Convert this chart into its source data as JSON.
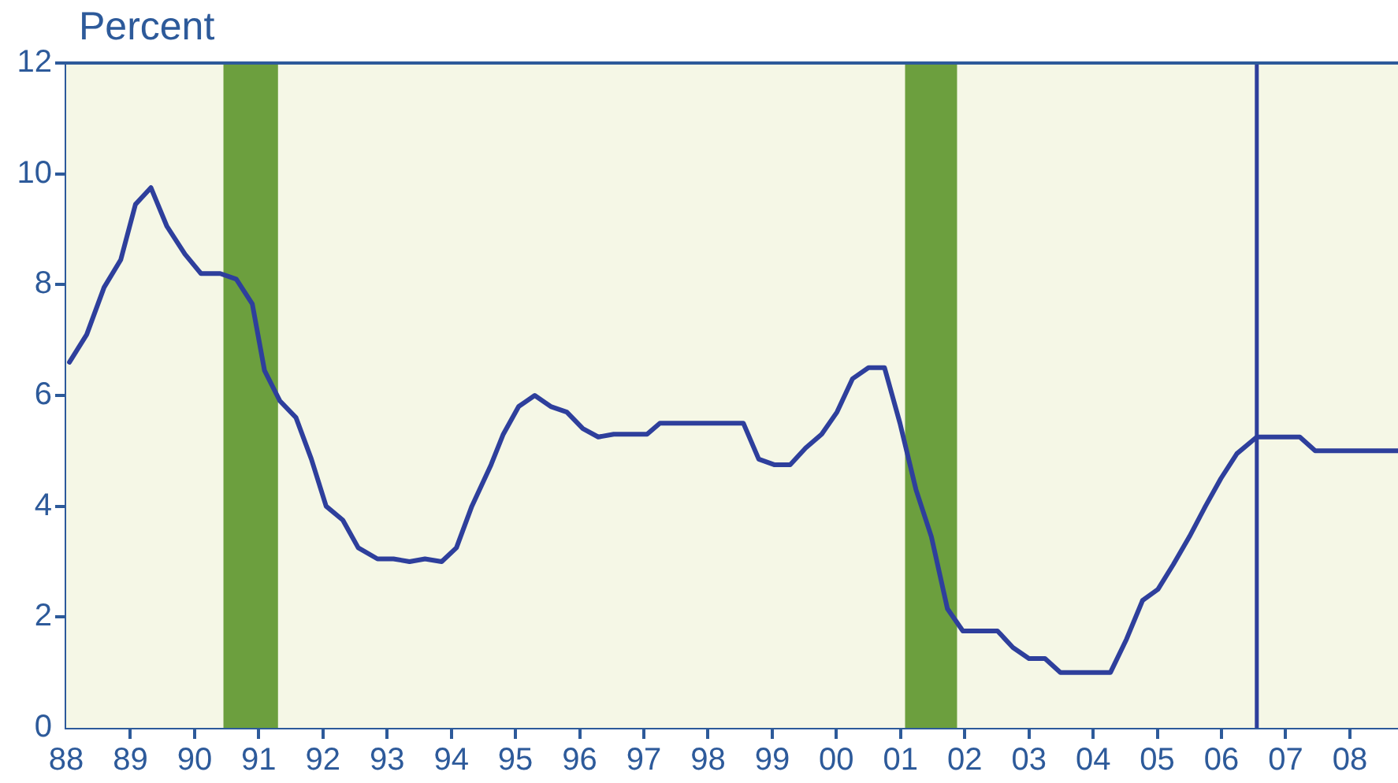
{
  "chart_data": {
    "type": "line",
    "ylabel": "Percent",
    "series": [
      {
        "color": "#2e3f9c",
        "x": [
          1988.05,
          1988.32,
          1988.59,
          1988.85,
          1989.08,
          1989.32,
          1989.57,
          1989.85,
          1990.1,
          1990.4,
          1990.65,
          1990.9,
          1991.09,
          1991.33,
          1991.58,
          1991.82,
          1992.05,
          1992.31,
          1992.55,
          1992.85,
          1993.1,
          1993.35,
          1993.59,
          1993.85,
          1994.08,
          1994.32,
          1994.62,
          1994.81,
          1995.05,
          1995.3,
          1995.55,
          1995.8,
          1996.05,
          1996.29,
          1996.53,
          1996.78,
          1997.05,
          1997.25,
          1997.55,
          1997.8,
          1998.05,
          1998.3,
          1998.55,
          1998.79,
          1999.03,
          1999.28,
          1999.52,
          1999.77,
          2000.01,
          2000.25,
          2000.5,
          2000.75,
          2000.99,
          2001.24,
          2001.48,
          2001.73,
          2001.97,
          2002.22,
          2002.51,
          2002.75,
          2003.0,
          2003.25,
          2003.49,
          2003.75,
          2003.98,
          2004.27,
          2004.52,
          2004.77,
          2005.01,
          2005.25,
          2005.5,
          2005.75,
          2005.99,
          2006.24,
          2006.55,
          2006.75,
          2007.0,
          2007.22,
          2007.46,
          2008.75
        ],
        "values": [
          6.6,
          7.1,
          7.95,
          8.45,
          9.45,
          9.75,
          9.05,
          8.55,
          8.2,
          8.2,
          8.1,
          7.65,
          6.45,
          5.9,
          5.6,
          4.85,
          4.0,
          3.75,
          3.25,
          3.05,
          3.05,
          3.0,
          3.05,
          3.0,
          3.25,
          4.0,
          4.75,
          5.3,
          5.8,
          6.0,
          5.8,
          5.7,
          5.4,
          5.25,
          5.3,
          5.3,
          5.3,
          5.5,
          5.5,
          5.5,
          5.5,
          5.5,
          5.5,
          4.85,
          4.75,
          4.75,
          5.05,
          5.3,
          5.7,
          6.3,
          6.5,
          6.5,
          5.5,
          4.3,
          3.45,
          2.15,
          1.75,
          1.75,
          1.75,
          1.45,
          1.25,
          1.25,
          1.0,
          1.0,
          1.0,
          1.0,
          1.6,
          2.3,
          2.5,
          2.95,
          3.45,
          4.0,
          4.5,
          4.95,
          5.25,
          5.25,
          5.25,
          5.25,
          5.0,
          5.0
        ]
      }
    ],
    "xlim": [
      1988,
      2008.75
    ],
    "xticks": [
      {
        "value": 1988,
        "label": "88"
      },
      {
        "value": 1989,
        "label": "89"
      },
      {
        "value": 1990,
        "label": "90"
      },
      {
        "value": 1991,
        "label": "91"
      },
      {
        "value": 1992,
        "label": "92"
      },
      {
        "value": 1993,
        "label": "93"
      },
      {
        "value": 1994,
        "label": "94"
      },
      {
        "value": 1995,
        "label": "95"
      },
      {
        "value": 1996,
        "label": "96"
      },
      {
        "value": 1997,
        "label": "97"
      },
      {
        "value": 1998,
        "label": "98"
      },
      {
        "value": 1999,
        "label": "99"
      },
      {
        "value": 2000,
        "label": "00"
      },
      {
        "value": 2001,
        "label": "01"
      },
      {
        "value": 2002,
        "label": "02"
      },
      {
        "value": 2003,
        "label": "03"
      },
      {
        "value": 2004,
        "label": "04"
      },
      {
        "value": 2005,
        "label": "05"
      },
      {
        "value": 2006,
        "label": "06"
      },
      {
        "value": 2007,
        "label": "07"
      },
      {
        "value": 2008,
        "label": "08"
      }
    ],
    "ylim": [
      0,
      12
    ],
    "yticks": [
      0,
      2,
      4,
      6,
      8,
      10,
      12
    ],
    "bands": [
      {
        "axis": "x",
        "from": 1990.45,
        "to": 1991.3,
        "color": "#6c9f3e"
      },
      {
        "axis": "x",
        "from": 2001.07,
        "to": 2001.88,
        "color": "#6c9f3e"
      }
    ],
    "ref_lines": [
      {
        "axis": "x",
        "value": 2006.55,
        "color": "#2e3f9c"
      }
    ],
    "legend": false,
    "marker": "none",
    "line_style": "solid"
  }
}
